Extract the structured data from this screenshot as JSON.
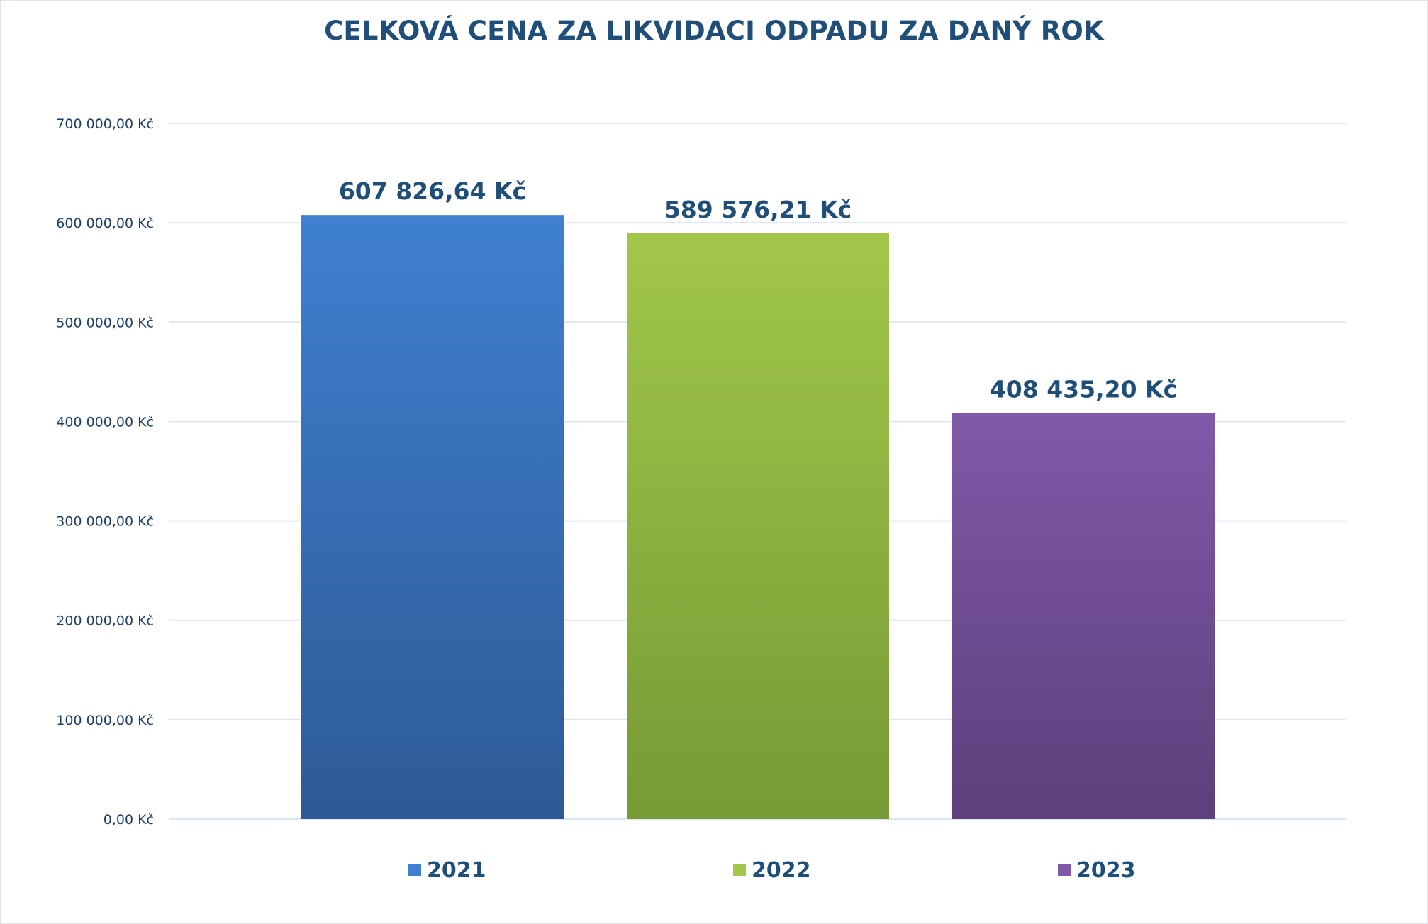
{
  "chart_data": {
    "type": "bar",
    "title": "CELKOVÁ CENA ZA LIKVIDACI ODPADU ZA DANÝ ROK",
    "xlabel": "",
    "ylabel": "",
    "categories": [
      "2021",
      "2022",
      "2023"
    ],
    "values": [
      607826.64,
      589576.21,
      408435.2
    ],
    "data_labels": [
      "607 826,64 Kč",
      "589 576,21 Kč",
      "408 435,20 Kč"
    ],
    "ylim": [
      0,
      700000
    ],
    "y_ticks": [
      0,
      100000,
      200000,
      300000,
      400000,
      500000,
      600000,
      700000
    ],
    "y_tick_labels": [
      "0,00 Kč",
      "100 000,00 Kč",
      "200 000,00 Kč",
      "300 000,00 Kč",
      "400 000,00 Kč",
      "500 000,00 Kč",
      "600 000,00 Kč",
      "700 000,00 Kč"
    ],
    "grid": true,
    "legend": [
      "2021",
      "2022",
      "2023"
    ],
    "legend_position": "bottom",
    "colors": [
      {
        "top": "#3f80d0",
        "bottom": "#2e5a95"
      },
      {
        "top": "#a2c74a",
        "bottom": "#769a35"
      },
      {
        "top": "#8059a9",
        "bottom": "#5d3f7b"
      }
    ],
    "gridline_color": "#dbe6f1"
  }
}
